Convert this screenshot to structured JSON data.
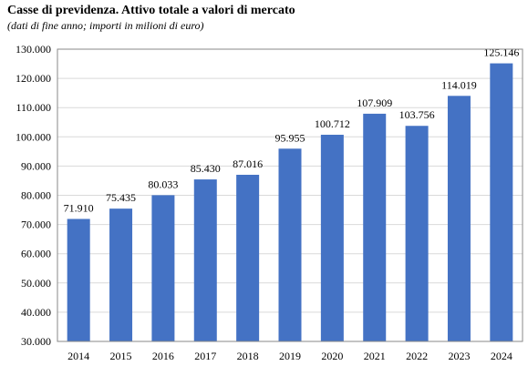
{
  "chart_data": {
    "type": "bar",
    "title": "Casse di previdenza. Attivo totale a valori di mercato",
    "subtitle": "(dati di fine anno; importi in milioni di euro)",
    "categories": [
      "2014",
      "2015",
      "2016",
      "2017",
      "2018",
      "2019",
      "2020",
      "2021",
      "2022",
      "2023",
      "2024"
    ],
    "values": [
      71910,
      75435,
      80033,
      85430,
      87016,
      95955,
      100712,
      107909,
      103756,
      114019,
      125146
    ],
    "data_labels": [
      "71.910",
      "75.435",
      "80.033",
      "85.430",
      "87.016",
      "95.955",
      "100.712",
      "107.909",
      "103.756",
      "114.019",
      "125.146"
    ],
    "yticks": [
      30000,
      40000,
      50000,
      60000,
      70000,
      80000,
      90000,
      100000,
      110000,
      120000,
      130000
    ],
    "ytick_labels": [
      "30.000",
      "40.000",
      "50.000",
      "60.000",
      "70.000",
      "80.000",
      "90.000",
      "100.000",
      "110.000",
      "120.000",
      "130.000"
    ],
    "ylim": [
      30000,
      130000
    ],
    "xlabel": "",
    "ylabel": "",
    "grid": true,
    "legend": "none",
    "bar_color": "#4472c4",
    "frame_color": "#888888",
    "grid_color": "#d9d9d9"
  }
}
